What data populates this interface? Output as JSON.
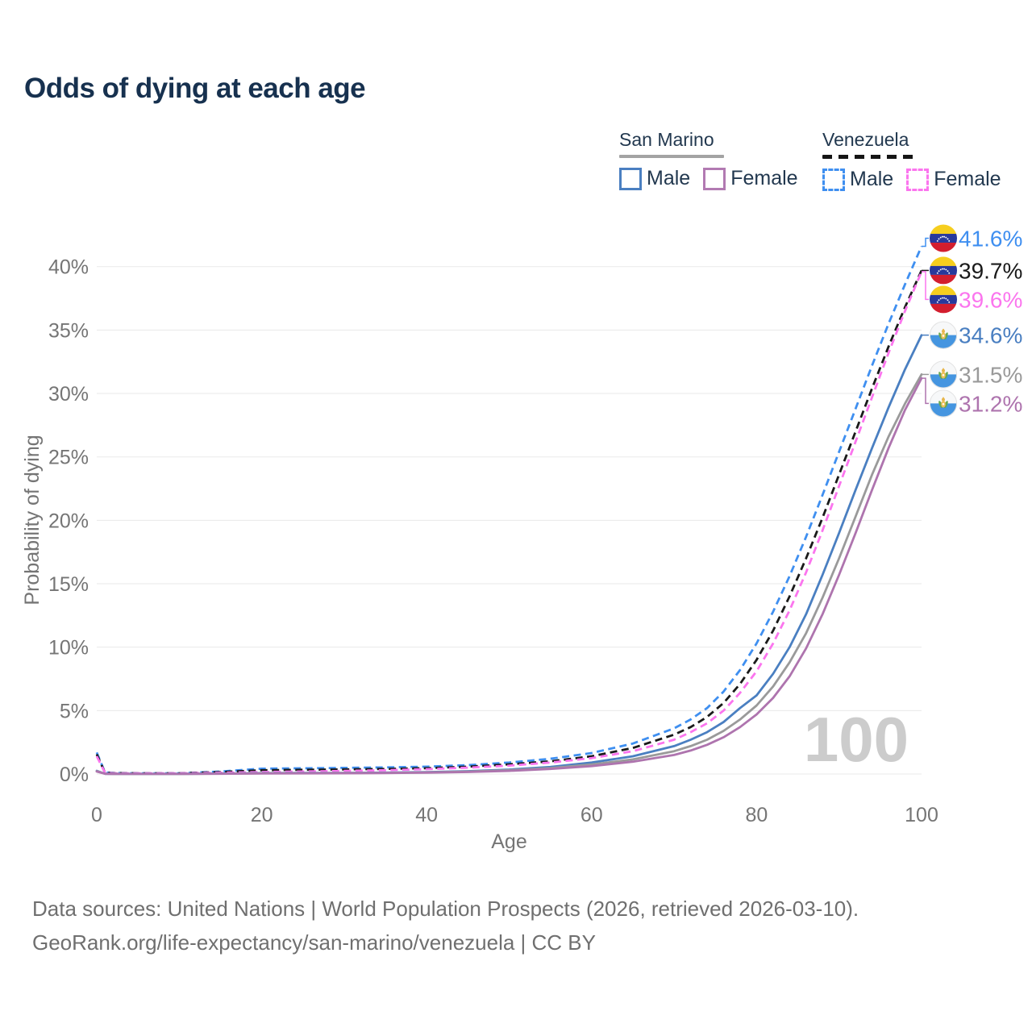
{
  "title": "Odds of dying at each age",
  "legend": {
    "groups": [
      {
        "country": "San Marino",
        "line_style": "solid",
        "underline_color": "#a3a3a3",
        "items": [
          {
            "label": "Male",
            "color": "#4a7fc1"
          },
          {
            "label": "Female",
            "color": "#b27ab2"
          }
        ]
      },
      {
        "country": "Venezuela",
        "line_style": "dashed",
        "underline_color": "#151515",
        "items": [
          {
            "label": "Male",
            "color": "#3f8ff0"
          },
          {
            "label": "Female",
            "color": "#fb75ee"
          }
        ]
      }
    ]
  },
  "chart_data": {
    "type": "line",
    "title": "Odds of dying at each age",
    "xlabel": "Age",
    "ylabel": "Probability of dying",
    "xlim": [
      0,
      100
    ],
    "ylim": [
      0,
      43
    ],
    "x_ticks": [
      0,
      20,
      40,
      60,
      80,
      100
    ],
    "y_ticks": [
      "0%",
      "5%",
      "10%",
      "15%",
      "20%",
      "25%",
      "30%",
      "35%",
      "40%"
    ],
    "grid": true,
    "legend_position": "top-right",
    "watermark": "100",
    "x": [
      0,
      1,
      2,
      5,
      10,
      15,
      20,
      25,
      30,
      35,
      40,
      45,
      50,
      55,
      60,
      65,
      70,
      72,
      74,
      76,
      78,
      80,
      82,
      84,
      86,
      88,
      90,
      92,
      94,
      96,
      98,
      100
    ],
    "series": [
      {
        "name": "Venezuela Male",
        "country": "Venezuela",
        "sex": "Male",
        "dash": true,
        "color": "#3f8ff0",
        "flag": "venezuela",
        "end_label": "41.6%",
        "values": [
          1.7,
          0.12,
          0.08,
          0.06,
          0.06,
          0.2,
          0.42,
          0.45,
          0.48,
          0.52,
          0.58,
          0.7,
          0.9,
          1.2,
          1.65,
          2.4,
          3.6,
          4.3,
          5.2,
          6.5,
          8.2,
          10.3,
          12.8,
          15.6,
          18.7,
          22.0,
          25.4,
          28.8,
          32.2,
          35.5,
          38.6,
          41.6
        ]
      },
      {
        "name": "Venezuela Both sexes",
        "country": "Venezuela",
        "sex": "Both",
        "dash": true,
        "color": "#1a1a1a",
        "flag": "venezuela",
        "end_label": "39.7%",
        "values": [
          1.55,
          0.11,
          0.07,
          0.055,
          0.055,
          0.15,
          0.3,
          0.33,
          0.36,
          0.4,
          0.46,
          0.58,
          0.76,
          1.0,
          1.4,
          2.05,
          3.1,
          3.7,
          4.5,
          5.6,
          7.1,
          9.0,
          11.3,
          14.0,
          17.0,
          20.2,
          23.6,
          27.0,
          30.4,
          33.7,
          36.8,
          39.7
        ]
      },
      {
        "name": "Venezuela Female",
        "country": "Venezuela",
        "sex": "Female",
        "dash": true,
        "color": "#fb75ee",
        "flag": "venezuela",
        "end_label": "39.6%",
        "values": [
          1.4,
          0.1,
          0.06,
          0.05,
          0.05,
          0.1,
          0.16,
          0.2,
          0.24,
          0.3,
          0.38,
          0.5,
          0.66,
          0.9,
          1.25,
          1.8,
          2.7,
          3.3,
          4.0,
          5.0,
          6.4,
          8.1,
          10.3,
          12.9,
          15.9,
          19.2,
          22.7,
          26.2,
          29.7,
          33.2,
          36.5,
          39.6
        ]
      },
      {
        "name": "San Marino Male",
        "country": "San Marino",
        "sex": "Male",
        "dash": false,
        "color": "#4a7fc1",
        "flag": "san-marino",
        "end_label": "34.6%",
        "values": [
          0.25,
          0.02,
          0.015,
          0.01,
          0.01,
          0.03,
          0.07,
          0.08,
          0.09,
          0.11,
          0.15,
          0.22,
          0.35,
          0.55,
          0.9,
          1.4,
          2.2,
          2.7,
          3.3,
          4.1,
          5.2,
          6.2,
          7.9,
          10.0,
          12.6,
          15.7,
          19.0,
          22.4,
          25.7,
          28.9,
          31.9,
          34.6
        ]
      },
      {
        "name": "San Marino Both sexes",
        "country": "San Marino",
        "sex": "Both",
        "dash": false,
        "color": "#9a9a9a",
        "flag": "san-marino",
        "end_label": "31.5%",
        "values": [
          0.22,
          0.018,
          0.013,
          0.009,
          0.009,
          0.025,
          0.055,
          0.065,
          0.075,
          0.09,
          0.13,
          0.19,
          0.3,
          0.47,
          0.75,
          1.15,
          1.8,
          2.2,
          2.7,
          3.4,
          4.3,
          5.4,
          6.9,
          8.8,
          11.1,
          13.9,
          17.0,
          20.3,
          23.6,
          26.6,
          29.2,
          31.5
        ]
      },
      {
        "name": "San Marino Female",
        "country": "San Marino",
        "sex": "Female",
        "dash": false,
        "color": "#ae74ae",
        "flag": "san-marino",
        "end_label": "31.2%",
        "values": [
          0.2,
          0.016,
          0.012,
          0.008,
          0.008,
          0.02,
          0.04,
          0.05,
          0.06,
          0.075,
          0.11,
          0.16,
          0.25,
          0.4,
          0.62,
          0.97,
          1.5,
          1.85,
          2.3,
          2.9,
          3.7,
          4.7,
          6.0,
          7.7,
          9.9,
          12.6,
          15.7,
          19.0,
          22.4,
          25.7,
          28.7,
          31.2
        ]
      }
    ]
  },
  "footer": {
    "line1": "Data sources: United Nations | World Population Prospects (2026, retrieved 2026-03-10).",
    "line2": "GeoRank.org/life-expectancy/san-marino/venezuela | CC BY"
  }
}
